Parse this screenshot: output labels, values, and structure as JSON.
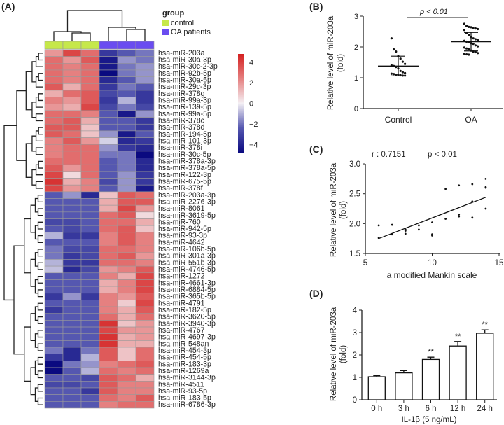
{
  "panels": {
    "a": "(A)",
    "b": "(B)",
    "c": "(C)",
    "d": "(D)"
  },
  "colors": {
    "control": "#c6e84a",
    "oa": "#6a4cf0",
    "low": "#0a0a80",
    "mid": "#f4f0f4",
    "high": "#d42020"
  },
  "chart_data": [
    {
      "type": "heatmap",
      "legend_title": "group",
      "groups": [
        {
          "name": "control",
          "color": "#c6e84a"
        },
        {
          "name": "OA patients",
          "color": "#6a4cf0"
        }
      ],
      "column_groups": [
        "control",
        "control",
        "control",
        "OA patients",
        "OA patients",
        "OA patients"
      ],
      "colorbar": {
        "ticks": [
          4,
          2,
          0,
          -2,
          -4
        ],
        "tick_labels": [
          "4",
          "2",
          "0",
          "−2",
          "−4"
        ],
        "range": [
          -4.8,
          4.8
        ]
      },
      "rows": [
        "hsa-miR-203a",
        "hsa-miR-30a-3p",
        "hsa-miR-30c-2-3p",
        "hsa-miR-92b-5p",
        "hsa-miR-30a-5p",
        "hsa-miR-29c-3p",
        "hsa-miR-378g",
        "hsa-miR-99a-3p",
        "hsa-miR-139-5p",
        "hsa-miR-99a-5p",
        "hsa-miR-378c",
        "hsa-miR-378d",
        "hsa-miR-194-5p",
        "hsa-miR-101-3p",
        "hsa-miR-378i",
        "hsa-miR-30c-5p",
        "hsa-miR-378a-3p",
        "hsa-miR-378a-5p",
        "hsa-miR-122-3p",
        "hsa-miR-675-5p",
        "hsa-miR-378f",
        "hsa-miR-203a-3p",
        "hsa-miR-2276-3p",
        "hsa-miR-8061",
        "hsa-miR-3619-5p",
        "hsa-miR-760",
        "hsa-miR-942-5p",
        "hsa-miR-93-3p",
        "hsa-miR-4642",
        "hsa-miR-106b-5p",
        "hsa-miR-301a-3p",
        "hsa-miR-551b-3p",
        "hsa-miR-4746-5p",
        "hsa-miR-1272",
        "hsa-miR-4661-3p",
        "hsa-miR-6884-5p",
        "hsa-miR-365b-5p",
        "hsa-miR-4791",
        "hsa-miR-182-5p",
        "hsa-miR-3620-5p",
        "hsa-miR-3940-3p",
        "hsa-miR-4767",
        "hsa-miR-4697-3p",
        "hsa-miR-548an",
        "hsa-miR-454-3p",
        "hsa-miR-454-5p",
        "hsa-miR-183-3p",
        "hsa-miR-1269a",
        "hsa-miR-3144-3p",
        "hsa-miR-4511",
        "hsa-miR-93-5p",
        "hsa-miR-183-5p",
        "hsa-miR-6786-3p"
      ],
      "values": [
        [
          2,
          4,
          3,
          -3.5,
          -2.5,
          -2
        ],
        [
          3,
          2,
          3.5,
          -4.5,
          -1.5,
          -2
        ],
        [
          3,
          2.5,
          3,
          -4.5,
          -2,
          -1.5
        ],
        [
          3,
          2.5,
          3,
          -5,
          -2,
          -1.5
        ],
        [
          3,
          2.5,
          3,
          -4,
          -2.5,
          -1.5
        ],
        [
          3.5,
          1.5,
          3,
          -3.5,
          -2,
          -2.5
        ],
        [
          1.5,
          3,
          3.5,
          -3,
          -2.5,
          -3.5
        ],
        [
          2.5,
          2,
          3.5,
          -3.5,
          -1,
          -3.5
        ],
        [
          2,
          1.5,
          4,
          -3,
          -2,
          -3
        ],
        [
          3,
          3,
          2.5,
          -2.5,
          -4.5,
          -1.5
        ],
        [
          3,
          3.5,
          1.5,
          -2.5,
          -2.5,
          -3.5
        ],
        [
          3.5,
          3.5,
          1,
          -2.5,
          -2.5,
          -3.5
        ],
        [
          3.5,
          3,
          1,
          -1.5,
          -4.5,
          -2.5
        ],
        [
          2.5,
          3.5,
          2,
          -0.5,
          -4,
          -3.5
        ],
        [
          2.5,
          3,
          3,
          -1.5,
          -3.5,
          -4
        ],
        [
          2.5,
          3,
          3,
          -2,
          -2,
          -5
        ],
        [
          3,
          3,
          3,
          -2.5,
          -2,
          -4
        ],
        [
          3.5,
          2,
          3,
          -2.5,
          -2,
          -4
        ],
        [
          4,
          0.5,
          3,
          -2.5,
          -1.5,
          -3.5
        ],
        [
          4.5,
          1.5,
          2.5,
          -3,
          -1.5,
          -3.5
        ],
        [
          4,
          2,
          2.5,
          -2.5,
          -1.5,
          -4.5
        ],
        [
          -2.5,
          -1.5,
          -4,
          1,
          3.5,
          3
        ],
        [
          -2.5,
          -2.5,
          -2.5,
          1.5,
          3.5,
          3.5
        ],
        [
          -2.5,
          -2.5,
          -2.5,
          1.5,
          4,
          2
        ],
        [
          -2.5,
          -2.5,
          -2.5,
          3,
          3.5,
          0.5
        ],
        [
          -3,
          -3,
          -2.5,
          3,
          3,
          1.5
        ],
        [
          -2.5,
          -3,
          -2.5,
          3,
          3.5,
          1
        ],
        [
          -1,
          -3.5,
          -3.5,
          2.5,
          3.5,
          2.5
        ],
        [
          -2.5,
          -2.5,
          -2.5,
          2.5,
          3.5,
          2.5
        ],
        [
          -2,
          -3,
          -3,
          3,
          3,
          2.5
        ],
        [
          -2,
          -3.5,
          -3,
          3,
          3.5,
          2
        ],
        [
          -1,
          -3.5,
          -3.5,
          3,
          3,
          2.5
        ],
        [
          -0.8,
          -4,
          -3,
          2,
          2.5,
          3.5
        ],
        [
          -2.5,
          -2.5,
          -2.5,
          2.5,
          1.5,
          4
        ],
        [
          -2.5,
          -2.5,
          -2.5,
          1.5,
          2.5,
          4
        ],
        [
          -2.5,
          -2.5,
          -2.5,
          1.5,
          2.5,
          4
        ],
        [
          -3.5,
          -1.5,
          -3.5,
          2.5,
          2,
          3.5
        ],
        [
          -2.5,
          -2.5,
          -2.5,
          2.5,
          0.8,
          4
        ],
        [
          -3.5,
          -2.5,
          -2.5,
          2.5,
          1.5,
          3.5
        ],
        [
          -2.5,
          -2.5,
          -2.5,
          3,
          1.5,
          3
        ],
        [
          -2.5,
          -2.5,
          -2.5,
          4.5,
          1,
          2
        ],
        [
          -2.5,
          -2.5,
          -2.5,
          4,
          2,
          2
        ],
        [
          -2.5,
          -2.5,
          -2.5,
          4.5,
          1.5,
          2
        ],
        [
          -2.5,
          -2.5,
          -2.5,
          4.5,
          1.5,
          1.5
        ],
        [
          -2,
          -4,
          -2,
          3.5,
          1,
          3
        ],
        [
          -3.5,
          -4,
          -1,
          3.5,
          1,
          3
        ],
        [
          -5,
          -2,
          -1.5,
          2.5,
          3,
          3.5
        ],
        [
          -5,
          -2.5,
          -1,
          3,
          2.5,
          3
        ],
        [
          -2.5,
          -2.5,
          -3,
          3.5,
          3,
          1.5
        ],
        [
          -3,
          -3,
          -2.5,
          3.5,
          2.5,
          2.5
        ],
        [
          -2.5,
          -2.5,
          -3.5,
          3.5,
          2.5,
          2.5
        ],
        [
          -2.5,
          -2.5,
          -2.5,
          3,
          2.5,
          3.5
        ],
        [
          -2.5,
          -2.5,
          -2.5,
          2.5,
          3,
          3
        ]
      ]
    },
    {
      "type": "scatter",
      "subtype": "dot-plot",
      "categories": [
        "Control",
        "OA"
      ],
      "ylabel": [
        "Relative level of miR-203a",
        "(fold)"
      ],
      "ylim": [
        0,
        3
      ],
      "yticks": [
        "0",
        "1",
        "2",
        "3"
      ],
      "annotation": "p < 0.01",
      "series": [
        {
          "name": "Control",
          "mean": 1.38,
          "sd": 0.32,
          "values": [
            2.28,
            1.92,
            1.85,
            1.7,
            1.62,
            1.52,
            1.45,
            1.4,
            1.38,
            1.35,
            1.3,
            1.22,
            1.18,
            1.15,
            1.13,
            1.12,
            1.1,
            1.1,
            1.08,
            1.07,
            1.07
          ]
        },
        {
          "name": "OA",
          "mean": 2.17,
          "sd": 0.3,
          "values": [
            2.75,
            2.68,
            2.65,
            2.64,
            2.62,
            2.6,
            2.58,
            2.55,
            2.45,
            2.38,
            2.32,
            2.28,
            2.25,
            2.22,
            2.2,
            2.17,
            2.15,
            2.12,
            2.1,
            2.05,
            2.02,
            1.98,
            1.95,
            1.92,
            1.88,
            1.85,
            1.83,
            1.8,
            1.78,
            1.76,
            1.75
          ]
        }
      ]
    },
    {
      "type": "scatter",
      "xlabel": "a modified Mankin scale",
      "ylabel": [
        "Relative level of miR-203a",
        "(fold)"
      ],
      "xlim": [
        5,
        15
      ],
      "ylim": [
        1.5,
        3.0
      ],
      "xticks": [
        "5",
        "10",
        "15"
      ],
      "yticks": [
        "1.5",
        "2.0",
        "2.5",
        "3.0"
      ],
      "r_label": "r : 0.7151",
      "p_label": "p < 0.01",
      "points": [
        [
          6,
          1.97
        ],
        [
          6,
          1.76
        ],
        [
          7,
          1.98
        ],
        [
          7,
          1.82
        ],
        [
          8,
          1.9
        ],
        [
          8,
          1.88
        ],
        [
          8,
          1.83
        ],
        [
          9,
          1.97
        ],
        [
          9,
          1.9
        ],
        [
          10,
          2.02
        ],
        [
          10,
          1.82
        ],
        [
          10,
          1.8
        ],
        [
          11,
          2.08
        ],
        [
          11,
          2.58
        ],
        [
          12,
          2.12
        ],
        [
          12,
          2.15
        ],
        [
          12,
          2.64
        ],
        [
          13,
          2.1
        ],
        [
          13,
          2.66
        ],
        [
          13,
          2.37
        ],
        [
          14,
          2.75
        ],
        [
          14,
          2.61
        ],
        [
          14,
          2.6
        ],
        [
          14,
          2.25
        ]
      ],
      "fit_line": [
        [
          6,
          1.75
        ],
        [
          14,
          2.44
        ]
      ]
    },
    {
      "type": "bar",
      "categories": [
        "0 h",
        "3 h",
        "6 h",
        "12 h",
        "24 h"
      ],
      "values": [
        1.03,
        1.2,
        1.8,
        2.4,
        2.97
      ],
      "errors": [
        0.05,
        0.1,
        0.1,
        0.2,
        0.15
      ],
      "significance": [
        "",
        "",
        "**",
        "**",
        "**"
      ],
      "xlabel": "IL-1β (5 ng/mL)",
      "ylabel": [
        "Relative level of miR-203a",
        "(fold)"
      ],
      "ylim": [
        0,
        4
      ],
      "yticks": [
        "0",
        "1",
        "2",
        "3",
        "4"
      ]
    }
  ]
}
